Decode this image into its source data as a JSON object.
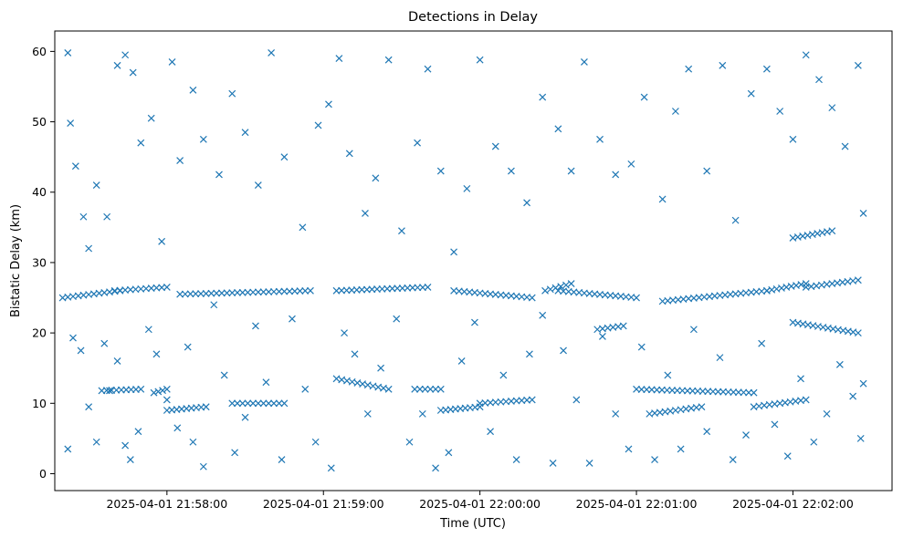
{
  "chart_data": {
    "type": "scatter",
    "title": "Detections in Delay",
    "xlabel": "Time (UTC)",
    "ylabel": "Bistatic Delay (km)",
    "marker": "x",
    "color": "#1f77b4",
    "grid": false,
    "legend": "none",
    "x_start": "2025-04-01 21:57:20",
    "x_end": "2025-04-01 22:02:35",
    "xlim": [
      "2025-04-01 21:57:17",
      "2025-04-01 22:02:38"
    ],
    "ylim": [
      -2.4,
      62.9
    ],
    "x_ticks": [
      "2025-04-01 21:58:00",
      "2025-04-01 21:59:00",
      "2025-04-01 22:00:00",
      "2025-04-01 22:01:00",
      "2025-04-01 22:02:00"
    ],
    "y_ticks": [
      0,
      10,
      20,
      30,
      40,
      50,
      60
    ],
    "tracks": [
      {
        "t0": "2025-04-01 21:57:20",
        "t1": "2025-04-01 21:57:42",
        "y0": 25.0,
        "y1": 26.0
      },
      {
        "t0": "2025-04-01 21:57:40",
        "t1": "2025-04-01 21:58:00",
        "y0": 26.0,
        "y1": 26.5
      },
      {
        "t0": "2025-04-01 21:58:05",
        "t1": "2025-04-01 21:58:55",
        "y0": 25.5,
        "y1": 26.0
      },
      {
        "t0": "2025-04-01 21:59:05",
        "t1": "2025-04-01 21:59:40",
        "y0": 26.0,
        "y1": 26.5
      },
      {
        "t0": "2025-04-01 21:59:50",
        "t1": "2025-04-01 22:00:20",
        "y0": 26.0,
        "y1": 25.0
      },
      {
        "t0": "2025-04-01 22:00:25",
        "t1": "2025-04-01 22:00:35",
        "y0": 26.0,
        "y1": 27.0
      },
      {
        "t0": "2025-04-01 22:00:30",
        "t1": "2025-04-01 22:01:00",
        "y0": 26.0,
        "y1": 25.0
      },
      {
        "t0": "2025-04-01 22:00:45",
        "t1": "2025-04-01 22:00:55",
        "y0": 20.5,
        "y1": 21.0
      },
      {
        "t0": "2025-04-01 22:01:10",
        "t1": "2025-04-01 22:01:50",
        "y0": 24.5,
        "y1": 26.0
      },
      {
        "t0": "2025-04-01 22:01:50",
        "t1": "2025-04-01 22:02:05",
        "y0": 26.0,
        "y1": 27.0
      },
      {
        "t0": "2025-04-01 22:02:00",
        "t1": "2025-04-01 22:02:25",
        "y0": 21.5,
        "y1": 20.0
      },
      {
        "t0": "2025-04-01 22:02:05",
        "t1": "2025-04-01 22:02:25",
        "y0": 26.5,
        "y1": 27.5
      },
      {
        "t0": "2025-04-01 22:02:00",
        "t1": "2025-04-01 22:02:15",
        "y0": 33.5,
        "y1": 34.5
      },
      {
        "t0": "2025-04-01 21:57:35",
        "t1": "2025-04-01 21:57:50",
        "y0": 11.8,
        "y1": 12.0
      },
      {
        "t0": "2025-04-01 21:57:55",
        "t1": "2025-04-01 21:58:00",
        "y0": 11.5,
        "y1": 12.0
      },
      {
        "t0": "2025-04-01 21:58:00",
        "t1": "2025-04-01 21:58:15",
        "y0": 9.0,
        "y1": 9.5
      },
      {
        "t0": "2025-04-01 21:58:25",
        "t1": "2025-04-01 21:58:45",
        "y0": 10.0,
        "y1": 10.0
      },
      {
        "t0": "2025-04-01 21:59:05",
        "t1": "2025-04-01 21:59:25",
        "y0": 13.5,
        "y1": 12.0
      },
      {
        "t0": "2025-04-01 21:59:35",
        "t1": "2025-04-01 21:59:45",
        "y0": 12.0,
        "y1": 12.0
      },
      {
        "t0": "2025-04-01 21:59:45",
        "t1": "2025-04-01 22:00:00",
        "y0": 9.0,
        "y1": 9.5
      },
      {
        "t0": "2025-04-01 22:00:00",
        "t1": "2025-04-01 22:00:20",
        "y0": 10.0,
        "y1": 10.5
      },
      {
        "t0": "2025-04-01 22:01:00",
        "t1": "2025-04-01 22:01:45",
        "y0": 12.0,
        "y1": 11.5
      },
      {
        "t0": "2025-04-01 22:01:05",
        "t1": "2025-04-01 22:01:25",
        "y0": 8.5,
        "y1": 9.5
      },
      {
        "t0": "2025-04-01 22:01:45",
        "t1": "2025-04-01 22:02:05",
        "y0": 9.5,
        "y1": 10.5
      }
    ],
    "points": [
      [
        "2025-04-01 21:57:22",
        59.8
      ],
      [
        "2025-04-01 21:57:23",
        49.8
      ],
      [
        "2025-04-01 21:57:25",
        43.7
      ],
      [
        "2025-04-01 21:57:28",
        36.5
      ],
      [
        "2025-04-01 21:57:30",
        32.0
      ],
      [
        "2025-04-01 21:57:33",
        41.0
      ],
      [
        "2025-04-01 21:57:37",
        36.5
      ],
      [
        "2025-04-01 21:57:41",
        58.0
      ],
      [
        "2025-04-01 21:57:44",
        59.5
      ],
      [
        "2025-04-01 21:57:47",
        57.0
      ],
      [
        "2025-04-01 21:57:50",
        47.0
      ],
      [
        "2025-04-01 21:57:54",
        50.5
      ],
      [
        "2025-04-01 21:57:58",
        33.0
      ],
      [
        "2025-04-01 21:58:02",
        58.5
      ],
      [
        "2025-04-01 21:58:05",
        44.5
      ],
      [
        "2025-04-01 21:58:10",
        54.5
      ],
      [
        "2025-04-01 21:58:14",
        47.5
      ],
      [
        "2025-04-01 21:58:20",
        42.5
      ],
      [
        "2025-04-01 21:58:25",
        54.0
      ],
      [
        "2025-04-01 21:58:30",
        48.5
      ],
      [
        "2025-04-01 21:58:35",
        41.0
      ],
      [
        "2025-04-01 21:58:40",
        59.8
      ],
      [
        "2025-04-01 21:58:45",
        45.0
      ],
      [
        "2025-04-01 21:58:52",
        35.0
      ],
      [
        "2025-04-01 21:58:58",
        49.5
      ],
      [
        "2025-04-01 21:59:02",
        52.5
      ],
      [
        "2025-04-01 21:59:06",
        59.0
      ],
      [
        "2025-04-01 21:59:10",
        45.5
      ],
      [
        "2025-04-01 21:59:16",
        37.0
      ],
      [
        "2025-04-01 21:59:20",
        42.0
      ],
      [
        "2025-04-01 21:59:25",
        58.8
      ],
      [
        "2025-04-01 21:59:30",
        34.5
      ],
      [
        "2025-04-01 21:59:36",
        47.0
      ],
      [
        "2025-04-01 21:59:40",
        57.5
      ],
      [
        "2025-04-01 21:59:45",
        43.0
      ],
      [
        "2025-04-01 21:59:50",
        31.5
      ],
      [
        "2025-04-01 21:59:55",
        40.5
      ],
      [
        "2025-04-01 22:00:00",
        58.8
      ],
      [
        "2025-04-01 22:00:06",
        46.5
      ],
      [
        "2025-04-01 22:00:12",
        43.0
      ],
      [
        "2025-04-01 22:00:18",
        38.5
      ],
      [
        "2025-04-01 22:00:24",
        53.5
      ],
      [
        "2025-04-01 22:00:30",
        49.0
      ],
      [
        "2025-04-01 22:00:35",
        43.0
      ],
      [
        "2025-04-01 22:00:40",
        58.5
      ],
      [
        "2025-04-01 22:00:46",
        47.5
      ],
      [
        "2025-04-01 22:00:52",
        42.5
      ],
      [
        "2025-04-01 22:00:58",
        44.0
      ],
      [
        "2025-04-01 22:01:03",
        53.5
      ],
      [
        "2025-04-01 22:01:10",
        39.0
      ],
      [
        "2025-04-01 22:01:15",
        51.5
      ],
      [
        "2025-04-01 22:01:20",
        57.5
      ],
      [
        "2025-04-01 22:01:27",
        43.0
      ],
      [
        "2025-04-01 22:01:33",
        58.0
      ],
      [
        "2025-04-01 22:01:38",
        36.0
      ],
      [
        "2025-04-01 22:01:44",
        54.0
      ],
      [
        "2025-04-01 22:01:50",
        57.5
      ],
      [
        "2025-04-01 22:01:55",
        51.5
      ],
      [
        "2025-04-01 22:02:00",
        47.5
      ],
      [
        "2025-04-01 22:02:05",
        59.5
      ],
      [
        "2025-04-01 22:02:10",
        56.0
      ],
      [
        "2025-04-01 22:02:15",
        52.0
      ],
      [
        "2025-04-01 22:02:20",
        46.5
      ],
      [
        "2025-04-01 22:02:25",
        58.0
      ],
      [
        "2025-04-01 22:02:27",
        37.0
      ],
      [
        "2025-04-01 21:57:22",
        3.5
      ],
      [
        "2025-04-01 21:57:24",
        19.3
      ],
      [
        "2025-04-01 21:57:27",
        17.5
      ],
      [
        "2025-04-01 21:57:30",
        9.5
      ],
      [
        "2025-04-01 21:57:33",
        4.5
      ],
      [
        "2025-04-01 21:57:36",
        18.5
      ],
      [
        "2025-04-01 21:57:38",
        11.8
      ],
      [
        "2025-04-01 21:57:41",
        16.0
      ],
      [
        "2025-04-01 21:57:44",
        4.0
      ],
      [
        "2025-04-01 21:57:46",
        2.0
      ],
      [
        "2025-04-01 21:57:49",
        6.0
      ],
      [
        "2025-04-01 21:57:53",
        20.5
      ],
      [
        "2025-04-01 21:57:56",
        17.0
      ],
      [
        "2025-04-01 21:58:00",
        10.5
      ],
      [
        "2025-04-01 21:58:04",
        6.5
      ],
      [
        "2025-04-01 21:58:08",
        18.0
      ],
      [
        "2025-04-01 21:58:10",
        4.5
      ],
      [
        "2025-04-01 21:58:14",
        1.0
      ],
      [
        "2025-04-01 21:58:18",
        24.0
      ],
      [
        "2025-04-01 21:58:22",
        14.0
      ],
      [
        "2025-04-01 21:58:26",
        3.0
      ],
      [
        "2025-04-01 21:58:30",
        8.0
      ],
      [
        "2025-04-01 21:58:34",
        21.0
      ],
      [
        "2025-04-01 21:58:38",
        13.0
      ],
      [
        "2025-04-01 21:58:44",
        2.0
      ],
      [
        "2025-04-01 21:58:48",
        22.0
      ],
      [
        "2025-04-01 21:58:53",
        12.0
      ],
      [
        "2025-04-01 21:58:57",
        4.5
      ],
      [
        "2025-04-01 21:59:03",
        0.8
      ],
      [
        "2025-04-01 21:59:08",
        20.0
      ],
      [
        "2025-04-01 21:59:12",
        17.0
      ],
      [
        "2025-04-01 21:59:17",
        8.5
      ],
      [
        "2025-04-01 21:59:22",
        15.0
      ],
      [
        "2025-04-01 21:59:28",
        22.0
      ],
      [
        "2025-04-01 21:59:33",
        4.5
      ],
      [
        "2025-04-01 21:59:38",
        8.5
      ],
      [
        "2025-04-01 21:59:43",
        0.8
      ],
      [
        "2025-04-01 21:59:48",
        3.0
      ],
      [
        "2025-04-01 21:59:53",
        16.0
      ],
      [
        "2025-04-01 21:59:58",
        21.5
      ],
      [
        "2025-04-01 22:00:04",
        6.0
      ],
      [
        "2025-04-01 22:00:09",
        14.0
      ],
      [
        "2025-04-01 22:00:14",
        2.0
      ],
      [
        "2025-04-01 22:00:19",
        17.0
      ],
      [
        "2025-04-01 22:00:24",
        22.5
      ],
      [
        "2025-04-01 22:00:28",
        1.5
      ],
      [
        "2025-04-01 22:00:32",
        17.5
      ],
      [
        "2025-04-01 22:00:37",
        10.5
      ],
      [
        "2025-04-01 22:00:42",
        1.5
      ],
      [
        "2025-04-01 22:00:47",
        19.5
      ],
      [
        "2025-04-01 22:00:52",
        8.5
      ],
      [
        "2025-04-01 22:00:57",
        3.5
      ],
      [
        "2025-04-01 22:01:02",
        18.0
      ],
      [
        "2025-04-01 22:01:07",
        2.0
      ],
      [
        "2025-04-01 22:01:12",
        14.0
      ],
      [
        "2025-04-01 22:01:17",
        3.5
      ],
      [
        "2025-04-01 22:01:22",
        20.5
      ],
      [
        "2025-04-01 22:01:27",
        6.0
      ],
      [
        "2025-04-01 22:01:32",
        16.5
      ],
      [
        "2025-04-01 22:01:37",
        2.0
      ],
      [
        "2025-04-01 22:01:42",
        5.5
      ],
      [
        "2025-04-01 22:01:48",
        18.5
      ],
      [
        "2025-04-01 22:01:53",
        7.0
      ],
      [
        "2025-04-01 22:01:58",
        2.5
      ],
      [
        "2025-04-01 22:02:03",
        13.5
      ],
      [
        "2025-04-01 22:02:08",
        4.5
      ],
      [
        "2025-04-01 22:02:13",
        8.5
      ],
      [
        "2025-04-01 22:02:18",
        15.5
      ],
      [
        "2025-04-01 22:02:23",
        11.0
      ],
      [
        "2025-04-01 22:02:26",
        5.0
      ],
      [
        "2025-04-01 22:02:27",
        12.8
      ]
    ]
  }
}
